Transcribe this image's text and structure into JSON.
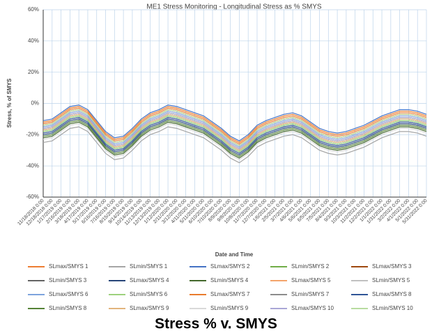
{
  "chart_data": {
    "type": "line",
    "title": "ME1 Stress Monitoring - Longitudinal Stress as % SMYS",
    "x_label": "Date and Time",
    "y_label": "Stress, % of SMYS",
    "caption": "Stress % v. SMYS",
    "grid": true,
    "legend": "bottom",
    "categories": [
      "11/18/2018 0:00",
      "12/18/2018 0:00",
      "1/17/2019 0:00",
      "2/16/2019 0:00",
      "3/18/2019 0:00",
      "4/17/2019 0:00",
      "5/17/2019 0:00",
      "6/16/2019 0:00",
      "7/16/2019 0:00",
      "8/15/2019 0:00",
      "9/14/2019 0:00",
      "10/14/2019 0:00",
      "11/13/2019 0:00",
      "12/13/2019 0:00",
      "1/12/2020 0:00",
      "2/11/2020 0:00",
      "3/12/2020 0:00",
      "4/11/2020 0:00",
      "5/11/2020 0:00",
      "6/10/2020 0:00",
      "7/10/2020 0:00",
      "8/9/2020 0:00",
      "9/8/2020 0:00",
      "10/8/2020 0:00",
      "11/7/2020 0:00",
      "12/7/2020 0:00",
      "1/6/2021 0:00",
      "2/5/2021 0:00",
      "3/7/2021 0:00",
      "4/6/2021 0:00",
      "5/6/2021 0:00",
      "6/5/2021 0:00",
      "7/5/2021 0:00",
      "8/4/2021 0:00",
      "9/3/2021 0:00",
      "10/3/2021 0:00",
      "11/2/2021 0:00",
      "12/2/2021 0:00",
      "1/1/2022 0:00",
      "1/31/2022 0:00",
      "3/2/2022 0:00",
      "4/1/2022 0:00",
      "5/1/2022 0:00",
      "5/31/2022 0:00"
    ],
    "ylim": [
      -60,
      60
    ],
    "yticks": [
      {
        "value": -60,
        "label": "-60%"
      },
      {
        "value": -40,
        "label": "-40%"
      },
      {
        "value": -20,
        "label": "-20%"
      },
      {
        "value": 0,
        "label": "0%"
      },
      {
        "value": 20,
        "label": "20%"
      },
      {
        "value": 40,
        "label": "40%"
      },
      {
        "value": 60,
        "label": "60%"
      }
    ],
    "series": [
      {
        "name": "SLmax/SMYS 1",
        "color": "#ed7d31",
        "values": [
          -13,
          -12,
          -8,
          -4,
          -3,
          -6,
          -13,
          -20,
          -24,
          -23,
          -18,
          -12,
          -8,
          -6,
          -3,
          -4,
          -6,
          -8,
          -10,
          -14,
          -18,
          -23,
          -26,
          -22,
          -16,
          -13,
          -11,
          -9,
          -8,
          -10,
          -14,
          -18,
          -20,
          -21,
          -20,
          -18,
          -16,
          -13,
          -10,
          -8,
          -6,
          -6,
          -7,
          -9
        ]
      },
      {
        "name": "SLmin/SMYS 1",
        "color": "#a5a5a5",
        "values": [
          -25,
          -24,
          -20,
          -16,
          -15,
          -18,
          -25,
          -32,
          -36,
          -35,
          -30,
          -24,
          -20,
          -18,
          -15,
          -16,
          -18,
          -20,
          -22,
          -26,
          -30,
          -35,
          -38,
          -34,
          -28,
          -25,
          -23,
          -21,
          -20,
          -22,
          -26,
          -30,
          -32,
          -33,
          -32,
          -30,
          -28,
          -25,
          -22,
          -20,
          -18,
          -18,
          -19,
          -21
        ]
      },
      {
        "name": "SLmax/SMYS 2",
        "color": "#4472c4",
        "values": [
          -11,
          -10,
          -6,
          -2,
          -1,
          -4,
          -11,
          -18,
          -22,
          -21,
          -16,
          -10,
          -6,
          -4,
          -1,
          -2,
          -4,
          -6,
          -8,
          -12,
          -16,
          -21,
          -24,
          -20,
          -14,
          -11,
          -9,
          -7,
          -6,
          -8,
          -12,
          -16,
          -18,
          -19,
          -18,
          -16,
          -14,
          -11,
          -8,
          -6,
          -4,
          -4,
          -5,
          -7
        ]
      },
      {
        "name": "SLmin/SMYS 2",
        "color": "#70ad47",
        "values": [
          -18,
          -17,
          -13,
          -9,
          -8,
          -11,
          -18,
          -25,
          -29,
          -28,
          -23,
          -17,
          -13,
          -11,
          -8,
          -9,
          -11,
          -13,
          -15,
          -19,
          -23,
          -28,
          -31,
          -27,
          -21,
          -18,
          -16,
          -14,
          -13,
          -15,
          -19,
          -23,
          -25,
          -26,
          -25,
          -23,
          -21,
          -18,
          -15,
          -13,
          -11,
          -11,
          -12,
          -14
        ]
      },
      {
        "name": "SLmax/SMYS 3",
        "color": "#9e480e",
        "values": [
          -14,
          -13,
          -9,
          -5,
          -4,
          -7,
          -14,
          -21,
          -25,
          -24,
          -19,
          -13,
          -9,
          -7,
          -4,
          -5,
          -7,
          -9,
          -11,
          -15,
          -19,
          -24,
          -27,
          -23,
          -17,
          -14,
          -12,
          -10,
          -9,
          -11,
          -15,
          -19,
          -21,
          -22,
          -21,
          -19,
          -17,
          -14,
          -11,
          -9,
          -7,
          -7,
          -8,
          -10
        ]
      },
      {
        "name": "SLmin/SMYS 3",
        "color": "#636363",
        "values": [
          -17,
          -16,
          -12,
          -8,
          -7,
          -10,
          -17,
          -24,
          -28,
          -27,
          -22,
          -16,
          -12,
          -10,
          -7,
          -8,
          -10,
          -12,
          -14,
          -18,
          -22,
          -27,
          -30,
          -26,
          -20,
          -17,
          -15,
          -13,
          -12,
          -14,
          -18,
          -22,
          -24,
          -25,
          -24,
          -22,
          -20,
          -17,
          -14,
          -12,
          -10,
          -10,
          -11,
          -13
        ]
      },
      {
        "name": "SLmax/SMYS 4",
        "color": "#264478",
        "values": [
          -20,
          -19,
          -15,
          -11,
          -10,
          -13,
          -20,
          -27,
          -31,
          -30,
          -25,
          -19,
          -15,
          -13,
          -10,
          -11,
          -13,
          -15,
          -17,
          -21,
          -25,
          -30,
          -33,
          -29,
          -23,
          -20,
          -18,
          -16,
          -15,
          -17,
          -21,
          -25,
          -27,
          -28,
          -27,
          -25,
          -23,
          -20,
          -17,
          -15,
          -13,
          -13,
          -14,
          -16
        ]
      },
      {
        "name": "SLmin/SMYS 4",
        "color": "#43682b",
        "values": [
          -22,
          -21,
          -17,
          -13,
          -12,
          -15,
          -22,
          -29,
          -33,
          -32,
          -27,
          -21,
          -17,
          -15,
          -12,
          -13,
          -15,
          -17,
          -19,
          -23,
          -27,
          -32,
          -35,
          -31,
          -25,
          -22,
          -20,
          -18,
          -17,
          -19,
          -23,
          -27,
          -29,
          -30,
          -29,
          -27,
          -25,
          -22,
          -19,
          -17,
          -15,
          -15,
          -16,
          -18
        ]
      },
      {
        "name": "SLmax/SMYS 5",
        "color": "#f4a46a",
        "values": [
          -16,
          -15,
          -11,
          -7,
          -6,
          -9,
          -16,
          -23,
          -27,
          -26,
          -21,
          -15,
          -11,
          -9,
          -6,
          -7,
          -9,
          -11,
          -13,
          -17,
          -21,
          -26,
          -29,
          -25,
          -19,
          -16,
          -14,
          -12,
          -11,
          -13,
          -17,
          -21,
          -23,
          -24,
          -23,
          -21,
          -19,
          -16,
          -13,
          -11,
          -9,
          -9,
          -10,
          -12
        ]
      },
      {
        "name": "SLmin/SMYS 5",
        "color": "#c0c0c0",
        "values": [
          -19,
          -18,
          -14,
          -10,
          -9,
          -12,
          -19,
          -26,
          -30,
          -29,
          -24,
          -18,
          -14,
          -12,
          -9,
          -10,
          -12,
          -14,
          -16,
          -20,
          -24,
          -29,
          -32,
          -28,
          -22,
          -19,
          -17,
          -15,
          -14,
          -16,
          -20,
          -24,
          -26,
          -27,
          -26,
          -24,
          -22,
          -19,
          -16,
          -14,
          -12,
          -12,
          -13,
          -15
        ]
      },
      {
        "name": "SLmax/SMYS 6",
        "color": "#7da3dd",
        "values": [
          -15,
          -14,
          -10,
          -6,
          -5,
          -8,
          -15,
          -22,
          -26,
          -25,
          -20,
          -14,
          -10,
          -8,
          -5,
          -6,
          -8,
          -10,
          -12,
          -16,
          -20,
          -25,
          -28,
          -24,
          -18,
          -15,
          -13,
          -11,
          -10,
          -12,
          -16,
          -20,
          -22,
          -23,
          -22,
          -20,
          -18,
          -15,
          -12,
          -10,
          -8,
          -8,
          -9,
          -11
        ]
      },
      {
        "name": "SLmin/SMYS 6",
        "color": "#9dd17d",
        "values": [
          -18,
          -17,
          -13,
          -9,
          -8,
          -11,
          -18,
          -25,
          -29,
          -28,
          -23,
          -17,
          -13,
          -11,
          -8,
          -9,
          -11,
          -13,
          -15,
          -19,
          -23,
          -28,
          -31,
          -27,
          -21,
          -18,
          -16,
          -14,
          -13,
          -15,
          -19,
          -23,
          -25,
          -26,
          -25,
          -23,
          -21,
          -18,
          -15,
          -13,
          -11,
          -11,
          -12,
          -14
        ]
      },
      {
        "name": "SLmax/SMYS 7",
        "color": "#e97b2c",
        "values": [
          -12,
          -11,
          -7,
          -3,
          -2,
          -5,
          -12,
          -19,
          -23,
          -22,
          -17,
          -11,
          -7,
          -5,
          -2,
          -3,
          -5,
          -7,
          -9,
          -13,
          -17,
          -22,
          -25,
          -21,
          -15,
          -12,
          -10,
          -8,
          -7,
          -9,
          -13,
          -17,
          -19,
          -20,
          -19,
          -17,
          -15,
          -12,
          -9,
          -7,
          -5,
          -5,
          -6,
          -8
        ]
      },
      {
        "name": "SLmin/SMYS 7",
        "color": "#8c8c8c",
        "values": [
          -16,
          -15,
          -11,
          -7,
          -6,
          -9,
          -16,
          -23,
          -27,
          -26,
          -21,
          -15,
          -11,
          -9,
          -6,
          -7,
          -9,
          -11,
          -13,
          -17,
          -21,
          -26,
          -29,
          -25,
          -19,
          -16,
          -14,
          -12,
          -11,
          -13,
          -17,
          -21,
          -23,
          -24,
          -23,
          -21,
          -19,
          -16,
          -13,
          -11,
          -9,
          -9,
          -10,
          -12
        ]
      },
      {
        "name": "SLmax/SMYS 8",
        "color": "#2f5597",
        "values": [
          -19,
          -18,
          -14,
          -10,
          -9,
          -12,
          -19,
          -26,
          -30,
          -29,
          -24,
          -18,
          -14,
          -12,
          -9,
          -10,
          -12,
          -14,
          -16,
          -20,
          -24,
          -29,
          -32,
          -28,
          -22,
          -19,
          -17,
          -15,
          -14,
          -16,
          -20,
          -24,
          -26,
          -27,
          -26,
          -24,
          -22,
          -19,
          -16,
          -14,
          -12,
          -12,
          -13,
          -15
        ]
      },
      {
        "name": "SLmin/SMYS 8",
        "color": "#548235",
        "values": [
          -21,
          -20,
          -16,
          -12,
          -11,
          -14,
          -21,
          -28,
          -32,
          -31,
          -26,
          -20,
          -16,
          -14,
          -11,
          -12,
          -14,
          -16,
          -18,
          -22,
          -26,
          -31,
          -34,
          -30,
          -24,
          -21,
          -19,
          -17,
          -16,
          -18,
          -22,
          -26,
          -28,
          -29,
          -28,
          -26,
          -24,
          -21,
          -18,
          -16,
          -14,
          -14,
          -15,
          -17
        ]
      },
      {
        "name": "SLmax/SMYS 9",
        "color": "#e2b47c",
        "values": [
          -17,
          -16,
          -12,
          -8,
          -7,
          -10,
          -17,
          -24,
          -28,
          -27,
          -22,
          -16,
          -12,
          -10,
          -7,
          -8,
          -10,
          -12,
          -14,
          -18,
          -22,
          -27,
          -30,
          -26,
          -20,
          -17,
          -15,
          -13,
          -12,
          -14,
          -18,
          -22,
          -24,
          -25,
          -24,
          -22,
          -20,
          -17,
          -14,
          -12,
          -10,
          -10,
          -11,
          -13
        ]
      },
      {
        "name": "SLmin/SMYS 9",
        "color": "#d9d9d9",
        "values": [
          -23,
          -22,
          -18,
          -14,
          -13,
          -16,
          -23,
          -30,
          -34,
          -33,
          -28,
          -22,
          -18,
          -16,
          -13,
          -14,
          -16,
          -18,
          -20,
          -24,
          -28,
          -33,
          -36,
          -32,
          -26,
          -23,
          -21,
          -19,
          -18,
          -20,
          -24,
          -28,
          -30,
          -31,
          -30,
          -28,
          -26,
          -23,
          -20,
          -18,
          -16,
          -16,
          -17,
          -19
        ]
      },
      {
        "name": "SLmax/SMYS 10",
        "color": "#a9a6d6",
        "values": [
          -16,
          -15,
          -11,
          -7,
          -6,
          -9,
          -16,
          -23,
          -27,
          -26,
          -21,
          -15,
          -11,
          -9,
          -6,
          -7,
          -9,
          -11,
          -13,
          -17,
          -21,
          -26,
          -29,
          -25,
          -19,
          -16,
          -14,
          -12,
          -11,
          -13,
          -17,
          -21,
          -23,
          -24,
          -23,
          -21,
          -19,
          -16,
          -13,
          -11,
          -9,
          -9,
          -10,
          -12
        ]
      },
      {
        "name": "SLmin/SMYS 10",
        "color": "#b8dca0",
        "values": [
          -14,
          -13,
          -9,
          -5,
          -4,
          -7,
          -14,
          -21,
          -25,
          -24,
          -19,
          -13,
          -9,
          -7,
          -4,
          -5,
          -7,
          -9,
          -11,
          -15,
          -19,
          -24,
          -27,
          -23,
          -17,
          -14,
          -12,
          -10,
          -9,
          -11,
          -15,
          -19,
          -21,
          -22,
          -21,
          -19,
          -17,
          -14,
          -11,
          -9,
          -7,
          -7,
          -8,
          -10
        ]
      }
    ]
  }
}
